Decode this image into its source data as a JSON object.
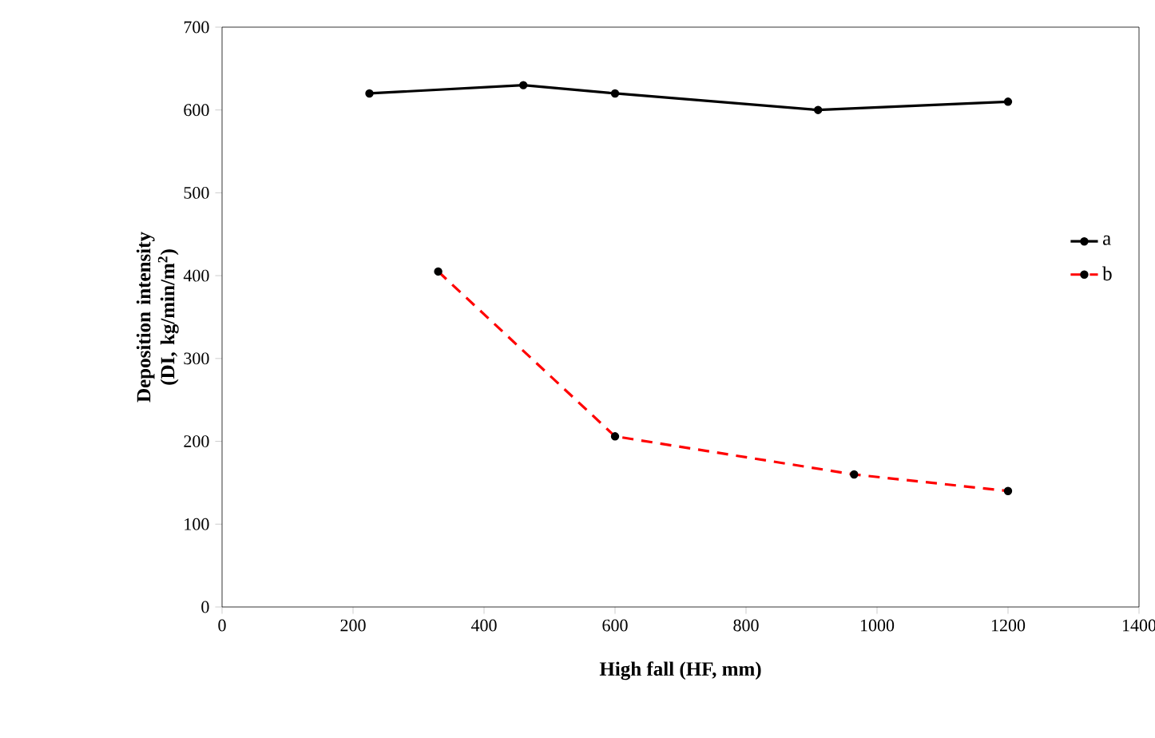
{
  "chart_data": {
    "type": "line",
    "xlabel": "High fall (HF,  mm)",
    "ylabel": "Deposition intensity (DI, kg/min/m$^{2}$)",
    "xlim": [
      0,
      1400
    ],
    "ylim": [
      0,
      700
    ],
    "xticks": [
      0,
      200,
      400,
      600,
      800,
      1000,
      1200,
      1400
    ],
    "yticks": [
      0,
      100,
      200,
      300,
      400,
      500,
      600,
      700
    ],
    "grid": false,
    "legend": "right",
    "marker": "circle",
    "series": [
      {
        "name": "a",
        "color": "#000000",
        "line_style": "solid",
        "x": [
          225,
          460,
          600,
          910,
          1200
        ],
        "values": [
          620,
          630,
          620,
          600,
          610
        ]
      },
      {
        "name": "b",
        "color": "#ff0000",
        "line_style": "dashed",
        "x": [
          330,
          600,
          965,
          1200
        ],
        "values": [
          405,
          206,
          160,
          140
        ]
      }
    ]
  }
}
